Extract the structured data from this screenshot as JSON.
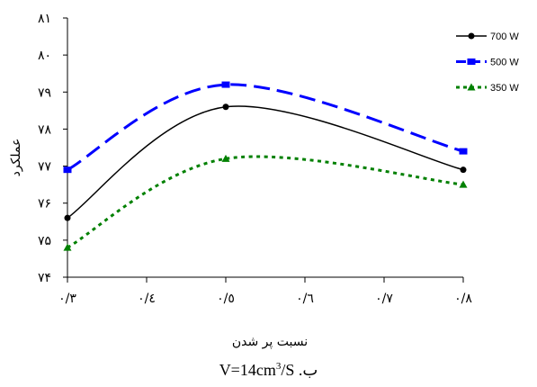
{
  "chart_data": {
    "type": "line",
    "x": [
      0.3,
      0.5,
      0.8
    ],
    "series": [
      {
        "name": "700 W",
        "values": [
          75.6,
          78.6,
          76.9
        ],
        "color": "#000000",
        "marker": "circle",
        "line_style": "solid"
      },
      {
        "name": "500 W",
        "values": [
          76.9,
          79.2,
          77.4
        ],
        "color": "#0000ff",
        "marker": "square",
        "line_style": "dashed"
      },
      {
        "name": "350 W",
        "values": [
          74.8,
          77.2,
          76.5
        ],
        "color": "#008000",
        "marker": "triangle",
        "line_style": "dotted"
      }
    ],
    "xlabel": "نسبت پر شدن",
    "ylabel": "عملکرد",
    "xlim": [
      0.3,
      0.8
    ],
    "ylim": [
      74,
      81
    ],
    "x_ticks": [
      0.3,
      0.4,
      0.5,
      0.6,
      0.7,
      0.8
    ],
    "x_tick_labels": [
      "٠/٣",
      "٠/٤",
      "٠/٥",
      "٠/٦",
      "٠/٧",
      "٠/٨"
    ],
    "y_ticks": [
      81,
      80,
      79,
      78,
      77,
      76,
      75,
      74
    ],
    "y_tick_labels": [
      "۸۱",
      "۸۰",
      "۷۹",
      "۷۸",
      "۷۷",
      "۷۶",
      "۷۵",
      "۷۴"
    ],
    "smooth": true,
    "grid": false,
    "legend_position": "top-right"
  },
  "caption": {
    "label": "ب.",
    "formula_main": "V=14cm",
    "formula_sup": "3",
    "formula_tail": "/S"
  }
}
